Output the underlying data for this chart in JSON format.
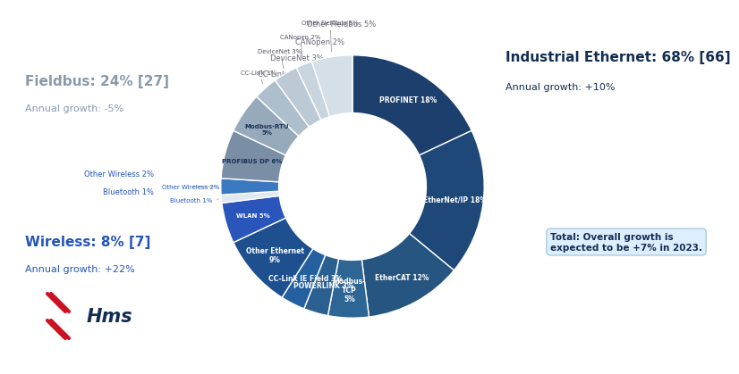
{
  "segments": [
    {
      "label": "PROFINET 18%",
      "value": 18,
      "color": "#1c3f6e",
      "group": "ethernet",
      "label_inside": true
    },
    {
      "label": "EtherNet/IP 18%",
      "value": 18,
      "color": "#1e4878",
      "group": "ethernet",
      "label_inside": true
    },
    {
      "label": "EtherCAT 12%",
      "value": 12,
      "color": "#255580",
      "group": "ethernet",
      "label_inside": true
    },
    {
      "label": "Modbus-\nTCP\n5%",
      "value": 5,
      "color": "#2d6595",
      "group": "ethernet",
      "label_inside": true
    },
    {
      "label": "POWERLINK 3%",
      "value": 3,
      "color": "#2a5f90",
      "group": "ethernet",
      "label_inside": true
    },
    {
      "label": "CC-Link IE Field 3%",
      "value": 3,
      "color": "#2460a0",
      "group": "ethernet",
      "label_inside": true
    },
    {
      "label": "Other Ethernet\n9%",
      "value": 9,
      "color": "#1e5090",
      "group": "ethernet",
      "label_inside": true
    },
    {
      "label": "WLAN 5%",
      "value": 5,
      "color": "#2a55bb",
      "group": "wireless",
      "label_inside": true
    },
    {
      "label": "Bluetooth 1%",
      "value": 1,
      "color": "#e0e8f0",
      "group": "wireless",
      "label_inside": false
    },
    {
      "label": "Other Wireless 2%",
      "value": 2,
      "color": "#3a78c0",
      "group": "wireless",
      "label_inside": false
    },
    {
      "label": "PROFIBUS DP 6%",
      "value": 6,
      "color": "#7a8fa5",
      "group": "fieldbus",
      "label_inside": true
    },
    {
      "label": "Modbus-RTU\n5%",
      "value": 5,
      "color": "#96aabb",
      "group": "fieldbus",
      "label_inside": true
    },
    {
      "label": "CC-Link 3%",
      "value": 3,
      "color": "#adbfcc",
      "group": "fieldbus",
      "label_inside": false
    },
    {
      "label": "DeviceNet 3%",
      "value": 3,
      "color": "#bbcad4",
      "group": "fieldbus",
      "label_inside": false
    },
    {
      "label": "CANopen 2%",
      "value": 2,
      "color": "#c8d4de",
      "group": "fieldbus",
      "label_inside": false
    },
    {
      "label": "Other Fieldbus 5%",
      "value": 5,
      "color": "#d5dfe8",
      "group": "fieldbus",
      "label_inside": false
    }
  ],
  "bg_color": "#ffffff",
  "title_ie": "Industrial Ethernet: 68% [66]",
  "subtitle_ie": "Annual growth: +10%",
  "title_fb": "Fieldbus: 24% [27]",
  "subtitle_fb": "Annual growth: -5%",
  "title_wl": "Wireless: 8% [7]",
  "subtitle_wl": "Annual growth: +22%",
  "total_text": "Total: Overall growth is\nexpected to be +7% in 2023.",
  "dark_blue": "#132d52",
  "medium_blue": "#2255bb",
  "fieldbus_gray": "#8899aa",
  "light_blue_bg": "#ddeeff",
  "light_blue_border": "#aaccdd"
}
